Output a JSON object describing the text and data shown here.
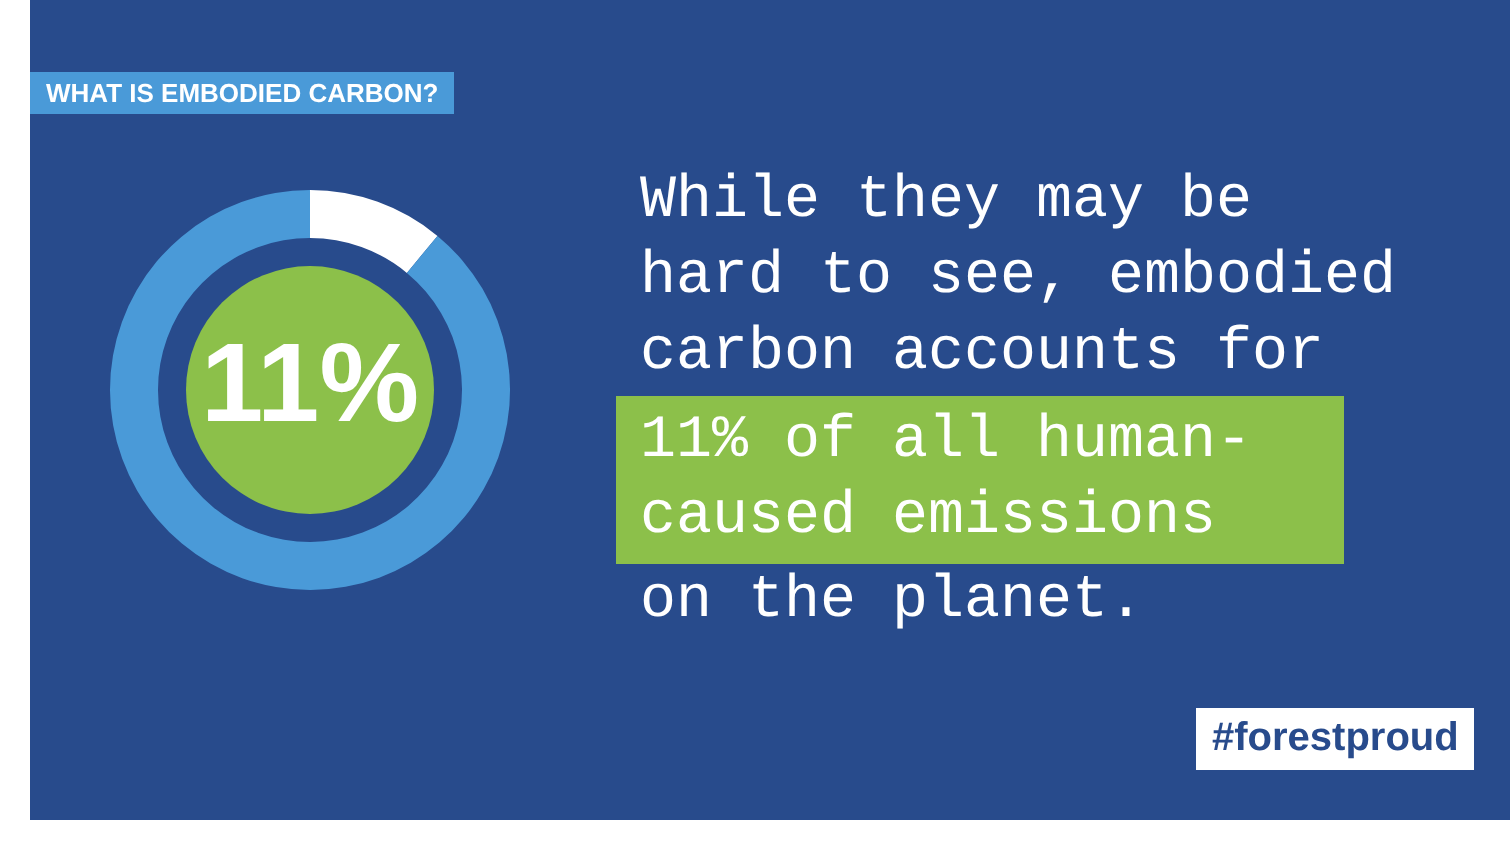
{
  "chart_data": {
    "type": "donut",
    "title": "WHAT IS EMBODIED CARBON?",
    "categories": [
      null,
      null
    ],
    "values": [
      11,
      89
    ],
    "colors": [
      "#ffffff",
      "#4a9ad8"
    ],
    "value_labels": [
      "11%",
      null
    ],
    "legend": false,
    "annotations": [
      "While they may be hard to see, embodied carbon accounts for",
      "11% of all human-caused emissions",
      "on the planet.",
      "#forestproud"
    ]
  }
}
